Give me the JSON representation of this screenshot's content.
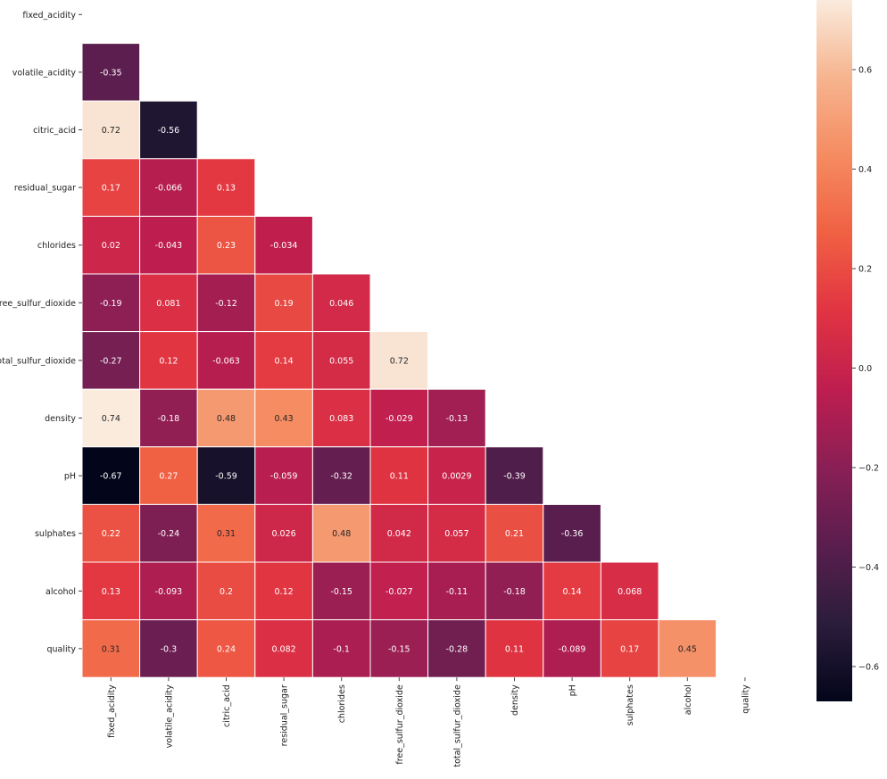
{
  "chart_data": {
    "type": "heatmap",
    "title": "",
    "xlabel": "",
    "ylabel": "",
    "mask": "upper-triangle-and-diagonal",
    "labels": [
      "fixed_acidity",
      "volatile_acidity",
      "citric_acid",
      "residual_sugar",
      "chlorides",
      "free_sulfur_dioxide",
      "total_sulfur_dioxide",
      "density",
      "pH",
      "sulphates",
      "alcohol",
      "quality"
    ],
    "cells": [
      {
        "row": "volatile_acidity",
        "col": "fixed_acidity",
        "value": -0.35,
        "label": "-0.35"
      },
      {
        "row": "citric_acid",
        "col": "fixed_acidity",
        "value": 0.72,
        "label": "0.72"
      },
      {
        "row": "citric_acid",
        "col": "volatile_acidity",
        "value": -0.56,
        "label": "-0.56"
      },
      {
        "row": "residual_sugar",
        "col": "fixed_acidity",
        "value": 0.17,
        "label": "0.17"
      },
      {
        "row": "residual_sugar",
        "col": "volatile_acidity",
        "value": -0.066,
        "label": "-0.066"
      },
      {
        "row": "residual_sugar",
        "col": "citric_acid",
        "value": 0.13,
        "label": "0.13"
      },
      {
        "row": "chlorides",
        "col": "fixed_acidity",
        "value": 0.02,
        "label": "0.02"
      },
      {
        "row": "chlorides",
        "col": "volatile_acidity",
        "value": -0.043,
        "label": "-0.043"
      },
      {
        "row": "chlorides",
        "col": "citric_acid",
        "value": 0.23,
        "label": "0.23"
      },
      {
        "row": "chlorides",
        "col": "residual_sugar",
        "value": -0.034,
        "label": "-0.034"
      },
      {
        "row": "free_sulfur_dioxide",
        "col": "fixed_acidity",
        "value": -0.19,
        "label": "-0.19"
      },
      {
        "row": "free_sulfur_dioxide",
        "col": "volatile_acidity",
        "value": 0.081,
        "label": "0.081"
      },
      {
        "row": "free_sulfur_dioxide",
        "col": "citric_acid",
        "value": -0.12,
        "label": "-0.12"
      },
      {
        "row": "free_sulfur_dioxide",
        "col": "residual_sugar",
        "value": 0.19,
        "label": "0.19"
      },
      {
        "row": "free_sulfur_dioxide",
        "col": "chlorides",
        "value": 0.046,
        "label": "0.046"
      },
      {
        "row": "total_sulfur_dioxide",
        "col": "fixed_acidity",
        "value": -0.27,
        "label": "-0.27"
      },
      {
        "row": "total_sulfur_dioxide",
        "col": "volatile_acidity",
        "value": 0.12,
        "label": "0.12"
      },
      {
        "row": "total_sulfur_dioxide",
        "col": "citric_acid",
        "value": -0.063,
        "label": "-0.063"
      },
      {
        "row": "total_sulfur_dioxide",
        "col": "residual_sugar",
        "value": 0.14,
        "label": "0.14"
      },
      {
        "row": "total_sulfur_dioxide",
        "col": "chlorides",
        "value": 0.055,
        "label": "0.055"
      },
      {
        "row": "total_sulfur_dioxide",
        "col": "free_sulfur_dioxide",
        "value": 0.72,
        "label": "0.72"
      },
      {
        "row": "density",
        "col": "fixed_acidity",
        "value": 0.74,
        "label": "0.74"
      },
      {
        "row": "density",
        "col": "volatile_acidity",
        "value": -0.18,
        "label": "-0.18"
      },
      {
        "row": "density",
        "col": "citric_acid",
        "value": 0.48,
        "label": "0.48"
      },
      {
        "row": "density",
        "col": "residual_sugar",
        "value": 0.43,
        "label": "0.43"
      },
      {
        "row": "density",
        "col": "chlorides",
        "value": 0.083,
        "label": "0.083"
      },
      {
        "row": "density",
        "col": "free_sulfur_dioxide",
        "value": -0.029,
        "label": "-0.029"
      },
      {
        "row": "density",
        "col": "total_sulfur_dioxide",
        "value": -0.13,
        "label": "-0.13"
      },
      {
        "row": "pH",
        "col": "fixed_acidity",
        "value": -0.67,
        "label": "-0.67"
      },
      {
        "row": "pH",
        "col": "volatile_acidity",
        "value": 0.27,
        "label": "0.27"
      },
      {
        "row": "pH",
        "col": "citric_acid",
        "value": -0.59,
        "label": "-0.59"
      },
      {
        "row": "pH",
        "col": "residual_sugar",
        "value": -0.059,
        "label": "-0.059"
      },
      {
        "row": "pH",
        "col": "chlorides",
        "value": -0.32,
        "label": "-0.32"
      },
      {
        "row": "pH",
        "col": "free_sulfur_dioxide",
        "value": 0.11,
        "label": "0.11"
      },
      {
        "row": "pH",
        "col": "total_sulfur_dioxide",
        "value": 0.0029,
        "label": "0.0029"
      },
      {
        "row": "pH",
        "col": "density",
        "value": -0.39,
        "label": "-0.39"
      },
      {
        "row": "sulphates",
        "col": "fixed_acidity",
        "value": 0.22,
        "label": "0.22"
      },
      {
        "row": "sulphates",
        "col": "volatile_acidity",
        "value": -0.24,
        "label": "-0.24"
      },
      {
        "row": "sulphates",
        "col": "citric_acid",
        "value": 0.31,
        "label": "0.31"
      },
      {
        "row": "sulphates",
        "col": "residual_sugar",
        "value": 0.026,
        "label": "0.026"
      },
      {
        "row": "sulphates",
        "col": "chlorides",
        "value": 0.48,
        "label": "0.48"
      },
      {
        "row": "sulphates",
        "col": "free_sulfur_dioxide",
        "value": 0.042,
        "label": "0.042"
      },
      {
        "row": "sulphates",
        "col": "total_sulfur_dioxide",
        "value": 0.057,
        "label": "0.057"
      },
      {
        "row": "sulphates",
        "col": "density",
        "value": 0.21,
        "label": "0.21"
      },
      {
        "row": "sulphates",
        "col": "pH",
        "value": -0.36,
        "label": "-0.36"
      },
      {
        "row": "alcohol",
        "col": "fixed_acidity",
        "value": 0.13,
        "label": "0.13"
      },
      {
        "row": "alcohol",
        "col": "volatile_acidity",
        "value": -0.093,
        "label": "-0.093"
      },
      {
        "row": "alcohol",
        "col": "citric_acid",
        "value": 0.2,
        "label": "0.2"
      },
      {
        "row": "alcohol",
        "col": "residual_sugar",
        "value": 0.12,
        "label": "0.12"
      },
      {
        "row": "alcohol",
        "col": "chlorides",
        "value": -0.15,
        "label": "-0.15"
      },
      {
        "row": "alcohol",
        "col": "free_sulfur_dioxide",
        "value": -0.027,
        "label": "-0.027"
      },
      {
        "row": "alcohol",
        "col": "total_sulfur_dioxide",
        "value": -0.11,
        "label": "-0.11"
      },
      {
        "row": "alcohol",
        "col": "density",
        "value": -0.18,
        "label": "-0.18"
      },
      {
        "row": "alcohol",
        "col": "pH",
        "value": 0.14,
        "label": "0.14"
      },
      {
        "row": "alcohol",
        "col": "sulphates",
        "value": 0.068,
        "label": "0.068"
      },
      {
        "row": "quality",
        "col": "fixed_acidity",
        "value": 0.31,
        "label": "0.31"
      },
      {
        "row": "quality",
        "col": "volatile_acidity",
        "value": -0.3,
        "label": "-0.3"
      },
      {
        "row": "quality",
        "col": "citric_acid",
        "value": 0.24,
        "label": "0.24"
      },
      {
        "row": "quality",
        "col": "residual_sugar",
        "value": 0.082,
        "label": "0.082"
      },
      {
        "row": "quality",
        "col": "chlorides",
        "value": -0.1,
        "label": "-0.1"
      },
      {
        "row": "quality",
        "col": "free_sulfur_dioxide",
        "value": -0.15,
        "label": "-0.15"
      },
      {
        "row": "quality",
        "col": "total_sulfur_dioxide",
        "value": -0.28,
        "label": "-0.28"
      },
      {
        "row": "quality",
        "col": "density",
        "value": 0.11,
        "label": "0.11"
      },
      {
        "row": "quality",
        "col": "pH",
        "value": -0.089,
        "label": "-0.089"
      },
      {
        "row": "quality",
        "col": "sulphates",
        "value": 0.17,
        "label": "0.17"
      },
      {
        "row": "quality",
        "col": "alcohol",
        "value": 0.45,
        "label": "0.45"
      }
    ],
    "colorbar": {
      "colormap": "rocket",
      "range": [
        -0.67,
        0.74
      ],
      "ticks": [
        0.6,
        0.4,
        0.2,
        0.0,
        -0.2,
        -0.4,
        -0.6
      ],
      "tick_labels": [
        "0.6",
        "0.4",
        "0.2",
        "0.0",
        "−0.2",
        "−0.4",
        "−0.6"
      ]
    },
    "colors": {
      "rocket": [
        "#03051a",
        "#2b1d3c",
        "#5a1e4e",
        "#8a1f55",
        "#be1e4f",
        "#e13342",
        "#f06043",
        "#f58b61",
        "#f6b48e",
        "#faebdd"
      ],
      "cell_border": "#ffffff",
      "text_dark": "#262626",
      "text_light": "#ffffff"
    }
  }
}
